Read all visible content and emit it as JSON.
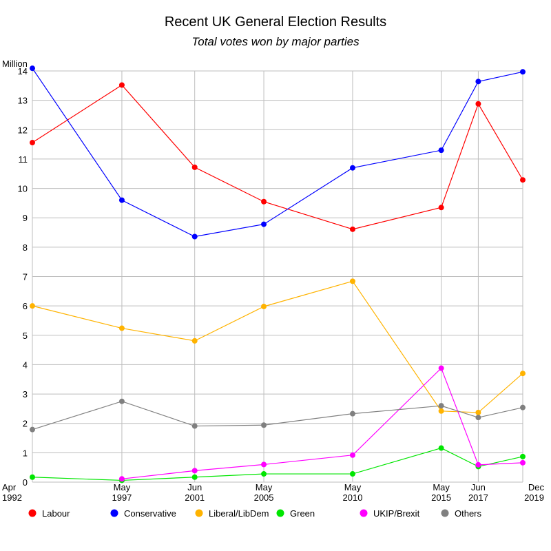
{
  "chart_data": {
    "type": "line",
    "title": "Recent UK General Election Results",
    "subtitle": "Total votes won by major parties",
    "ylabel": "Million",
    "ylim": [
      0,
      14
    ],
    "yticks": [
      "0",
      "1",
      "2",
      "3",
      "4",
      "5",
      "6",
      "7",
      "8",
      "9",
      "10",
      "11",
      "12",
      "13",
      "14"
    ],
    "grid": true,
    "legend_position": "bottom",
    "x": [
      1992.28,
      1997.33,
      2001.44,
      2005.34,
      2010.35,
      2015.35,
      2017.44,
      2019.95
    ],
    "x_labels": [
      {
        "month": "Apr",
        "year": "1992"
      },
      {
        "month": "May",
        "year": "1997"
      },
      {
        "month": "Jun",
        "year": "2001"
      },
      {
        "month": "May",
        "year": "2005"
      },
      {
        "month": "May",
        "year": "2010"
      },
      {
        "month": "May",
        "year": "2015"
      },
      {
        "month": "Jun",
        "year": "2017"
      },
      {
        "month": "Dec",
        "year": "2019"
      }
    ],
    "series": [
      {
        "name": "Labour",
        "color": "#ff0000",
        "values": [
          11.56,
          13.52,
          10.72,
          9.55,
          8.61,
          9.35,
          12.88,
          10.29
        ]
      },
      {
        "name": "Conservative",
        "color": "#0000ff",
        "values": [
          14.09,
          9.6,
          8.36,
          8.78,
          10.7,
          11.3,
          13.64,
          13.97
        ]
      },
      {
        "name": "Liberal/LibDem",
        "color": "#ffb300",
        "values": [
          6.0,
          5.24,
          4.81,
          5.98,
          6.84,
          2.42,
          2.37,
          3.7
        ]
      },
      {
        "name": "Green",
        "color": "#00e600",
        "values": [
          0.17,
          0.06,
          0.17,
          0.28,
          0.28,
          1.16,
          0.53,
          0.87
        ]
      },
      {
        "name": "UKIP/Brexit",
        "color": "#ff00ff",
        "values": [
          null,
          0.11,
          0.39,
          0.6,
          0.92,
          3.88,
          0.59,
          0.66
        ]
      },
      {
        "name": "Others",
        "color": "#808080",
        "values": [
          1.79,
          2.75,
          1.91,
          1.94,
          2.33,
          2.6,
          2.2,
          2.54
        ]
      }
    ]
  }
}
